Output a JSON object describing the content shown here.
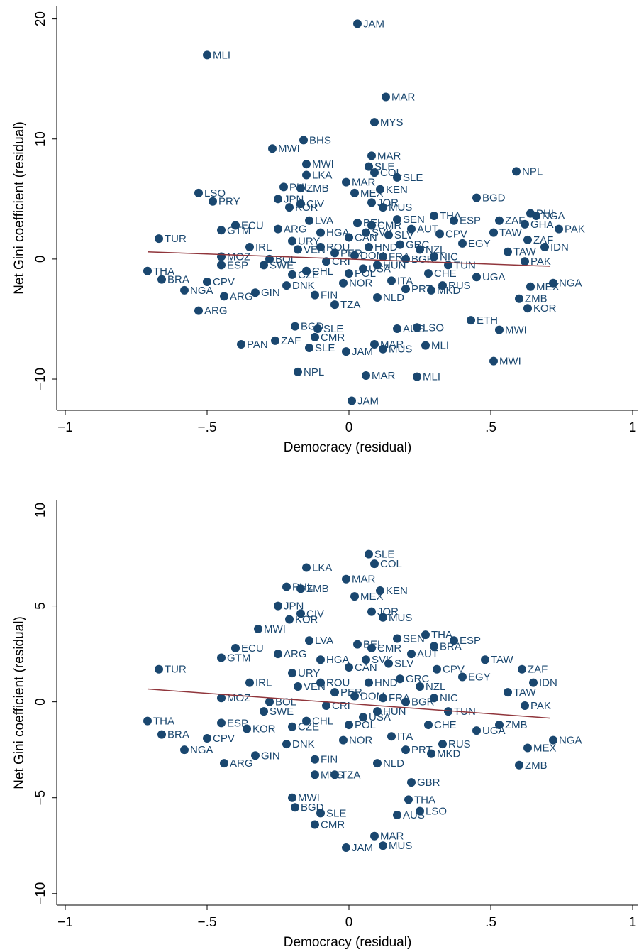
{
  "chart_data": [
    {
      "type": "scatter",
      "xlabel": "Democracy (residual)",
      "ylabel": "Net Gini coefficient (residual)",
      "color": "#1a476f",
      "fit_color": "#90353b",
      "xlim": [
        -1.03,
        1.02
      ],
      "ylim": [
        -12.6,
        21.1
      ],
      "xticks": [
        {
          "value": -1,
          "label": "−1"
        },
        {
          "value": -0.5,
          "label": "−.5"
        },
        0,
        {
          "value": 0.5,
          "label": ".5"
        },
        1
      ],
      "yticks": [
        {
          "value": -10,
          "label": "−10"
        },
        0,
        10,
        20
      ],
      "fit": {
        "x": [
          -0.71,
          0.71
        ],
        "values": [
          0.6,
          -0.6
        ]
      },
      "labels": [
        "JAM",
        "MLI",
        "MAR",
        "MYS",
        "BHS",
        "MWI",
        "MAR",
        "MWI",
        "SLE",
        "COL",
        "NPL",
        "LKA",
        "SLE",
        "MAR",
        "PHL",
        "ZMB",
        "KEN",
        "MEX",
        "LSO",
        "BGD",
        "JPN",
        "PRY",
        "JOR",
        "MUS",
        "CIV",
        "KOR",
        "PHL",
        "NGA",
        "THA",
        "ESP",
        "ZAF",
        "GHA",
        "PAK",
        "TUR",
        "TAW",
        "CPV",
        "ZAF",
        "IDN",
        "TAW",
        "THA",
        "BRA",
        "CPV",
        "NGA",
        "ARG",
        "ARG",
        "NGA",
        "MEX",
        "PAK",
        "KOR",
        "ZMB",
        "ETH",
        "MWI",
        "MWI",
        "MKD",
        "MLI",
        "MAR",
        "MUS",
        "JAM",
        "SLE",
        "CMR",
        "PAN",
        "ZAF",
        "NPL",
        "MAR",
        "MLI",
        "JAM",
        "SLE",
        "BGD",
        "AUS",
        "LSO",
        "ESP",
        "GTM",
        "ARG",
        "URY",
        "CHL",
        "HGA",
        "PER",
        "CAN",
        "USA",
        "CMR",
        "FRA",
        "ITA",
        "GRC",
        "PRT",
        "NZL",
        "SWE",
        "DNK",
        "FIN",
        "NOR",
        "BEL",
        "NLD",
        "AUT",
        "CHE",
        "IRL",
        "ECU",
        "BOL",
        "VEN",
        "CRI",
        "DOM",
        "HND",
        "SLV",
        "NIC",
        "TUN",
        "EGY",
        "MOZ",
        "UGA",
        "TZA",
        "SEN",
        "GIN",
        "RUS",
        "POL",
        "HUN",
        "ROU",
        "BGR",
        "CZE",
        "SVK",
        "LVA"
      ],
      "x": [
        0.03,
        -0.5,
        0.13,
        0.09,
        -0.16,
        -0.27,
        0.08,
        -0.15,
        0.07,
        0.09,
        0.59,
        -0.15,
        0.17,
        -0.01,
        -0.23,
        -0.17,
        0.11,
        0.02,
        -0.53,
        0.45,
        -0.25,
        -0.48,
        0.08,
        0.12,
        -0.17,
        -0.21,
        0.64,
        0.66,
        0.3,
        0.37,
        0.53,
        0.62,
        0.74,
        -0.67,
        0.51,
        0.32,
        0.63,
        0.69,
        0.56,
        -0.71,
        -0.66,
        -0.5,
        -0.58,
        -0.53,
        -0.44,
        0.72,
        0.64,
        0.62,
        0.63,
        0.6,
        0.43,
        0.53,
        0.51,
        0.29,
        0.27,
        0.09,
        0.12,
        -0.01,
        -0.14,
        -0.12,
        -0.38,
        -0.26,
        -0.18,
        0.06,
        0.24,
        0.01,
        -0.11,
        -0.19,
        0.17,
        0.24,
        -0.45,
        -0.45,
        -0.25,
        -0.2,
        -0.15,
        -0.1,
        -0.05,
        0,
        0.05,
        0.08,
        0.12,
        0.15,
        0.18,
        0.2,
        0.25,
        -0.3,
        -0.22,
        -0.12,
        -0.02,
        0.03,
        0.1,
        0.22,
        0.28,
        -0.35,
        -0.4,
        -0.28,
        -0.18,
        -0.08,
        0.02,
        0.07,
        0.14,
        0.3,
        0.35,
        0.4,
        -0.45,
        0.45,
        -0.05,
        0.17,
        -0.33,
        0.33,
        0,
        0.1,
        -0.1,
        0.2,
        -0.2,
        0.06,
        -0.14
      ],
      "values": [
        19.6,
        17.0,
        13.5,
        11.4,
        9.9,
        9.2,
        8.6,
        7.9,
        7.7,
        7.2,
        7.3,
        7.0,
        6.8,
        6.4,
        6.0,
        5.9,
        5.8,
        5.5,
        5.5,
        5.1,
        5.0,
        4.8,
        4.7,
        4.3,
        4.6,
        4.3,
        3.8,
        3.6,
        3.6,
        3.2,
        3.2,
        2.9,
        2.5,
        1.7,
        2.2,
        2.1,
        1.6,
        1.0,
        0.6,
        -1.0,
        -1.7,
        -1.9,
        -2.6,
        -4.3,
        -3.1,
        -2.0,
        -2.3,
        -0.2,
        -4.1,
        -3.3,
        -5.1,
        -5.9,
        -8.5,
        -2.6,
        -7.2,
        -7.1,
        -7.5,
        -7.7,
        -7.4,
        -6.5,
        -7.1,
        -6.8,
        -9.4,
        -9.7,
        -9.8,
        -11.8,
        -5.8,
        -5.6,
        -5.8,
        -5.7,
        -0.5,
        2.4,
        2.5,
        1.5,
        -1,
        2.2,
        0.5,
        1.8,
        -0.8,
        2.8,
        0.2,
        -1.8,
        1.2,
        -2.5,
        0.8,
        -0.5,
        -2.2,
        -3,
        -2,
        3,
        -3.2,
        2.5,
        -1.2,
        1,
        2.8,
        0,
        0.8,
        -0.2,
        0.3,
        1,
        2,
        0.2,
        -0.5,
        1.3,
        0.2,
        -1.5,
        -3.8,
        3.3,
        -2.8,
        -2.2,
        -1.2,
        -0.5,
        1,
        0,
        -1.3,
        2.2,
        3.2
      ]
    },
    {
      "type": "scatter",
      "xlabel": "Democracy (residual)",
      "ylabel": "Net Gini coefficient (residual)",
      "color": "#1a476f",
      "fit_color": "#90353b",
      "xlim": [
        -1.03,
        1.02
      ],
      "ylim": [
        -10.6,
        10.5
      ],
      "xticks": [
        {
          "value": -1,
          "label": "−1"
        },
        {
          "value": -0.5,
          "label": "−.5"
        },
        0,
        {
          "value": 0.5,
          "label": ".5"
        },
        1
      ],
      "yticks": [
        {
          "value": -10,
          "label": "−10"
        },
        {
          "value": -5,
          "label": "−5"
        },
        0,
        5,
        10
      ],
      "fit": {
        "x": [
          -0.71,
          0.71
        ],
        "values": [
          0.67,
          -0.85
        ]
      },
      "labels": [
        "SLE",
        "COL",
        "LKA",
        "MAR",
        "PHL",
        "ZMB",
        "KEN",
        "MEX",
        "JPN",
        "JOR",
        "MUS",
        "CIV",
        "KOR",
        "MWI",
        "THA",
        "ESP",
        "BRA",
        "TAW",
        "CPV",
        "ZAF",
        "TUR",
        "IDN",
        "TAW",
        "PAK",
        "THA",
        "BRA",
        "CPV",
        "NGA",
        "ARG",
        "NGA",
        "MEX",
        "ZMB",
        "ZMB",
        "MKD",
        "SLE",
        "BGD",
        "CMR",
        "MAR",
        "MUS",
        "JAM",
        "AUS",
        "LSO",
        "THA",
        "MWI",
        "ESP",
        "KOR",
        "GTM",
        "MYS",
        "GBR",
        "ARG",
        "URY",
        "CHL",
        "HGA",
        "PER",
        "CAN",
        "USA",
        "CMR",
        "FRA",
        "ITA",
        "GRC",
        "PRT",
        "NZL",
        "SWE",
        "DNK",
        "FIN",
        "NOR",
        "BEL",
        "NLD",
        "AUT",
        "CHE",
        "IRL",
        "ECU",
        "BOL",
        "VEN",
        "CRI",
        "DOM",
        "HND",
        "SLV",
        "NIC",
        "TUN",
        "EGY",
        "MOZ",
        "UGA",
        "TZA",
        "SEN",
        "GIN",
        "RUS",
        "POL",
        "HUN",
        "ROU",
        "BGR",
        "CZE",
        "SVK",
        "LVA"
      ],
      "x": [
        0.07,
        0.09,
        -0.15,
        -0.01,
        -0.22,
        -0.17,
        0.11,
        0.02,
        -0.25,
        0.08,
        0.12,
        -0.17,
        -0.21,
        -0.32,
        0.27,
        0.37,
        0.3,
        0.48,
        0.31,
        0.61,
        -0.67,
        0.65,
        0.56,
        0.62,
        -0.71,
        -0.66,
        -0.5,
        -0.58,
        -0.44,
        0.72,
        0.63,
        0.6,
        0.53,
        0.29,
        -0.1,
        -0.19,
        -0.12,
        0.09,
        0.12,
        -0.01,
        0.17,
        0.25,
        0.21,
        -0.2,
        -0.45,
        -0.36,
        -0.45,
        -0.12,
        0.22,
        -0.25,
        -0.2,
        -0.15,
        -0.1,
        -0.05,
        0,
        0.05,
        0.08,
        0.12,
        0.15,
        0.18,
        0.2,
        0.25,
        -0.3,
        -0.22,
        -0.12,
        -0.02,
        0.03,
        0.1,
        0.22,
        0.28,
        -0.35,
        -0.4,
        -0.28,
        -0.18,
        -0.08,
        0.02,
        0.07,
        0.14,
        0.3,
        0.35,
        0.4,
        -0.45,
        0.45,
        -0.05,
        0.17,
        -0.33,
        0.33,
        0,
        0.1,
        -0.1,
        0.2,
        -0.2,
        0.06,
        -0.14
      ],
      "values": [
        7.7,
        7.2,
        7.0,
        6.4,
        6.0,
        5.9,
        5.8,
        5.5,
        5.0,
        4.7,
        4.4,
        4.6,
        4.3,
        3.8,
        3.5,
        3.2,
        2.9,
        2.2,
        1.7,
        1.7,
        1.7,
        1.0,
        0.5,
        -0.2,
        -1.0,
        -1.7,
        -1.9,
        -2.5,
        -3.2,
        -2.0,
        -2.4,
        -3.3,
        -1.2,
        -2.7,
        -5.8,
        -5.5,
        -6.4,
        -7.0,
        -7.5,
        -7.6,
        -5.9,
        -5.7,
        -5.1,
        -5.0,
        -1.1,
        -1.4,
        2.3,
        -3.8,
        -4.2,
        2.5,
        1.5,
        -1,
        2.2,
        0.5,
        1.8,
        -0.8,
        2.8,
        0.2,
        -1.8,
        1.2,
        -2.5,
        0.8,
        -0.5,
        -2.2,
        -3,
        -2,
        3,
        -3.2,
        2.5,
        -1.2,
        1,
        2.8,
        0,
        0.8,
        -0.2,
        0.3,
        1,
        2,
        0.2,
        -0.5,
        1.3,
        0.2,
        -1.5,
        -3.8,
        3.3,
        -2.8,
        -2.2,
        -1.2,
        -0.5,
        1,
        0,
        -1.3,
        2.2,
        3.2
      ]
    }
  ]
}
